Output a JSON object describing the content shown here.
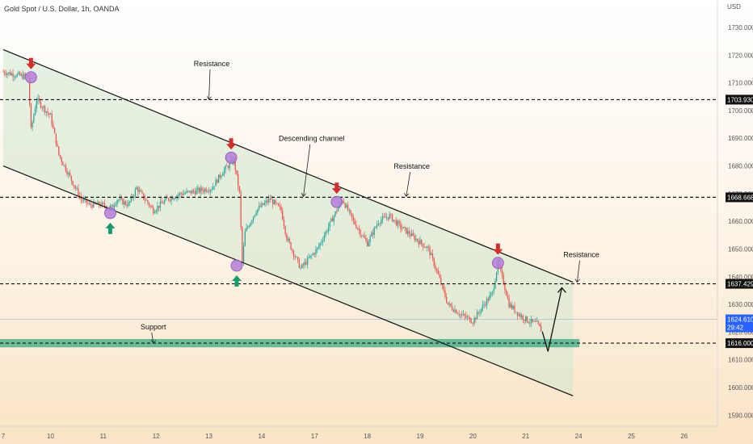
{
  "chart_title": "Gold Spot / U.S. Dollar, 1h, OANDA",
  "currency": "USD",
  "chart_data": {
    "type": "candlestick",
    "y_axis": {
      "range": [
        1586,
        1737
      ],
      "ticks": [
        1590,
        1600,
        1610,
        1620,
        1630,
        1640,
        1650,
        1660,
        1670,
        1680,
        1690,
        1700,
        1710,
        1720,
        1730
      ],
      "tick_labels": [
        "1590.000",
        "1600.000",
        "1610.000",
        "1620.000",
        "1630.000",
        "1640.000",
        "1650.000",
        "1660.000",
        "1670.000",
        "1680.000",
        "1690.000",
        "1700.000",
        "1710.000",
        "1720.000",
        "1730.000"
      ]
    },
    "x_axis": {
      "ticks": [
        {
          "label": "7",
          "bar": 0
        },
        {
          "label": "10",
          "bar": 34
        },
        {
          "label": "11",
          "bar": 72
        },
        {
          "label": "12",
          "bar": 110
        },
        {
          "label": "13",
          "bar": 148
        },
        {
          "label": "14",
          "bar": 186
        },
        {
          "label": "17",
          "bar": 224
        },
        {
          "label": "18",
          "bar": 262
        },
        {
          "label": "19",
          "bar": 300
        },
        {
          "label": "20",
          "bar": 338
        },
        {
          "label": "21",
          "bar": 376
        },
        {
          "label": "24",
          "bar": 414
        },
        {
          "label": "25",
          "bar": 452
        },
        {
          "label": "26",
          "bar": 490
        }
      ]
    },
    "price_path": [
      [
        0,
        1714
      ],
      [
        8,
        1713
      ],
      [
        18,
        1712
      ],
      [
        20,
        1693
      ],
      [
        24,
        1704
      ],
      [
        34,
        1698
      ],
      [
        40,
        1684
      ],
      [
        56,
        1668
      ],
      [
        62,
        1666
      ],
      [
        70,
        1666
      ],
      [
        78,
        1665
      ],
      [
        82,
        1668
      ],
      [
        90,
        1666
      ],
      [
        96,
        1672
      ],
      [
        102,
        1668
      ],
      [
        108,
        1664
      ],
      [
        118,
        1668
      ],
      [
        128,
        1670
      ],
      [
        140,
        1671
      ],
      [
        150,
        1672
      ],
      [
        158,
        1678
      ],
      [
        166,
        1682
      ],
      [
        170,
        1670
      ],
      [
        172,
        1645
      ],
      [
        174,
        1656
      ],
      [
        182,
        1664
      ],
      [
        192,
        1668
      ],
      [
        200,
        1664
      ],
      [
        204,
        1654
      ],
      [
        214,
        1643
      ],
      [
        226,
        1650
      ],
      [
        236,
        1660
      ],
      [
        244,
        1668
      ],
      [
        252,
        1660
      ],
      [
        262,
        1652
      ],
      [
        270,
        1660
      ],
      [
        278,
        1662
      ],
      [
        286,
        1658
      ],
      [
        296,
        1654
      ],
      [
        306,
        1650
      ],
      [
        312,
        1642
      ],
      [
        320,
        1630
      ],
      [
        330,
        1626
      ],
      [
        338,
        1624
      ],
      [
        346,
        1630
      ],
      [
        352,
        1634
      ],
      [
        356,
        1645
      ],
      [
        360,
        1638
      ],
      [
        364,
        1630
      ],
      [
        372,
        1626
      ],
      [
        378,
        1624
      ],
      [
        384,
        1623
      ],
      [
        388,
        1620
      ]
    ],
    "levels": [
      {
        "type": "resistance",
        "price": 1703.93,
        "label": "1703.930"
      },
      {
        "type": "resistance",
        "price": 1668.668,
        "label": "1668.668"
      },
      {
        "type": "resistance",
        "price": 1637.429,
        "label": "1637.429"
      },
      {
        "type": "support",
        "price": 1616.0,
        "label": "1616.000"
      }
    ],
    "current_price": {
      "price": 1624.61,
      "label": "1624.610",
      "countdown": "29:42"
    },
    "support_zone": {
      "from": 1614.5,
      "to": 1617.5
    },
    "channel": {
      "upper": [
        [
          0,
          1722
        ],
        [
          410,
          1638
        ]
      ],
      "lower": [
        [
          0,
          1680
        ],
        [
          410,
          1597
        ]
      ],
      "end_bar": 410
    },
    "forecast_path": [
      [
        388,
        1620
      ],
      [
        392,
        1613
      ],
      [
        402,
        1636
      ]
    ],
    "touch_markers": [
      {
        "bar": 20,
        "price": 1712,
        "arrow": "down"
      },
      {
        "bar": 164,
        "price": 1683,
        "arrow": "down"
      },
      {
        "bar": 240,
        "price": 1667,
        "arrow": "down"
      },
      {
        "bar": 356,
        "price": 1645,
        "arrow": "down"
      },
      {
        "bar": 77,
        "price": 1663,
        "arrow": "up"
      },
      {
        "bar": 168,
        "price": 1644,
        "arrow": "up"
      }
    ],
    "annotations": [
      {
        "text": "Resistance",
        "bar": 150,
        "price": 1716,
        "pointer": [
          148,
          1704
        ]
      },
      {
        "text": "Descending channel",
        "bar": 222,
        "price": 1689,
        "pointer": [
          216,
          1669
        ]
      },
      {
        "text": "Resistance",
        "bar": 294,
        "price": 1679,
        "pointer": [
          290,
          1669
        ]
      },
      {
        "text": "Resistance",
        "bar": 416,
        "price": 1647,
        "pointer": [
          413,
          1638
        ]
      },
      {
        "text": "Support",
        "bar": 108,
        "price": 1621,
        "pointer": [
          108,
          1616
        ]
      }
    ]
  },
  "colors": {
    "up": "#26a69a",
    "down": "#ef5350",
    "channel_fill": "#cfe8cf",
    "support_zone": "#3aaa82",
    "touch_marker": "#b57cd9",
    "arrow_down": "#d03030",
    "arrow_up": "#1a9a6c",
    "current_price": "#2962ff"
  }
}
